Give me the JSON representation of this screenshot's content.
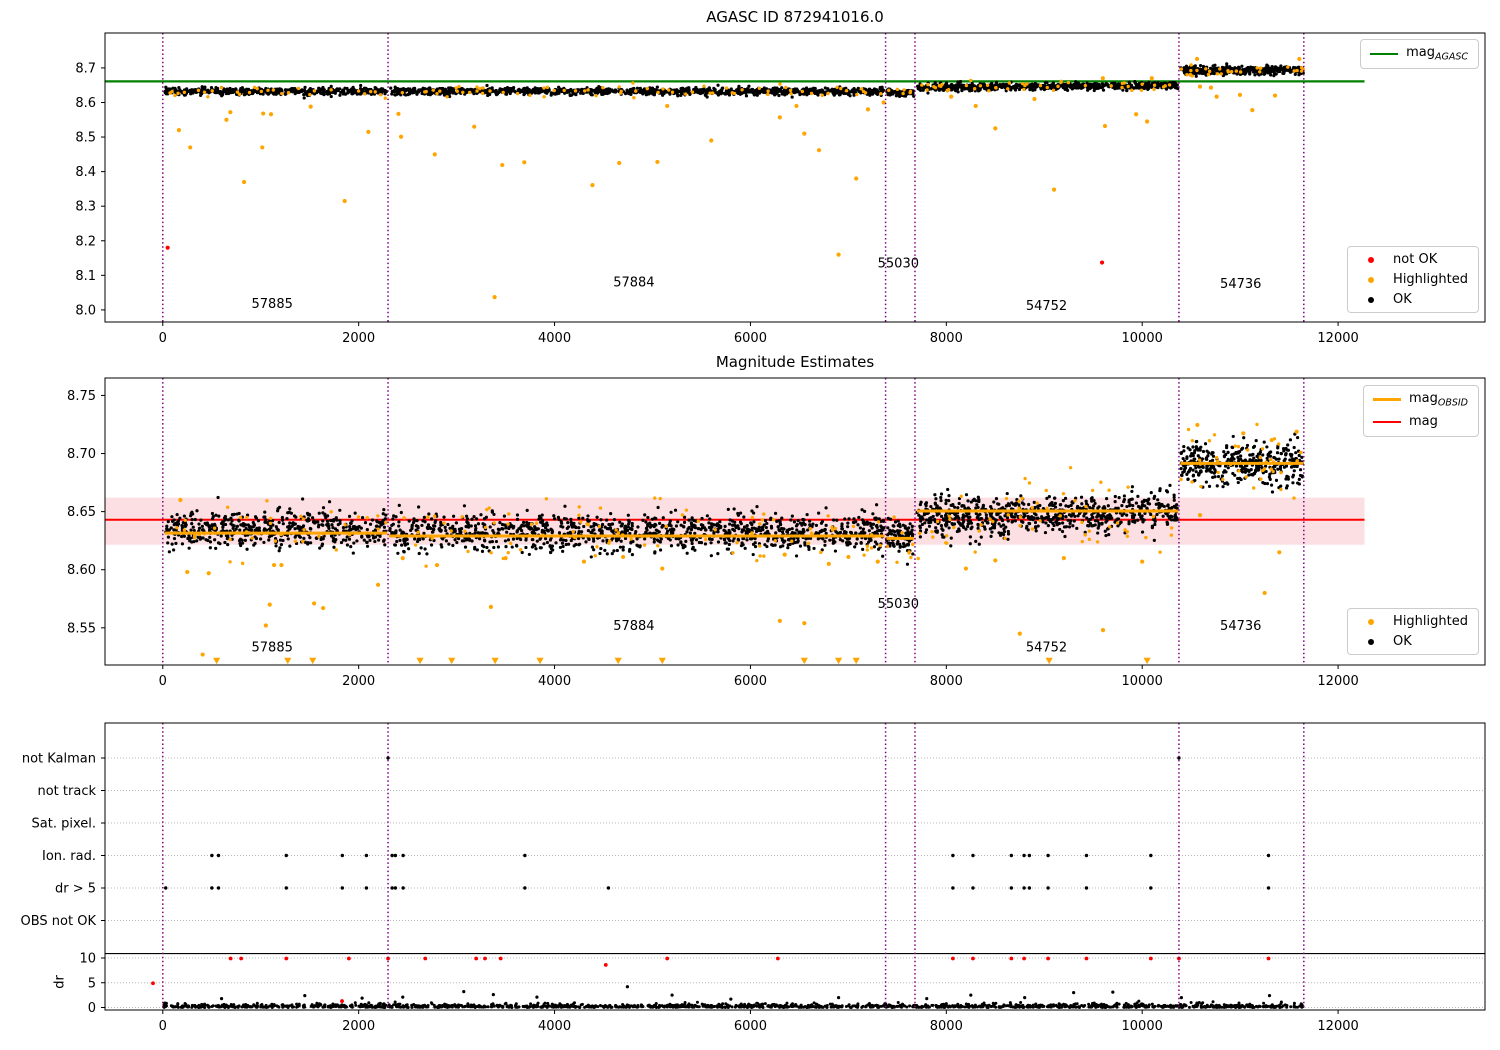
{
  "figure": {
    "background": "#ffffff"
  },
  "colors": {
    "ok": "#000000",
    "highlighted": "#FFA500",
    "not_ok": "#FF0000",
    "mag_agasc": "#008000",
    "mag_obsid": "#FFA500",
    "mag": "#FF0000",
    "vline": "#800080",
    "band_fill": "#fbdfe3",
    "grid": "#b8b8b8",
    "spine": "#000000"
  },
  "chart_data": [
    {
      "id": "plot1",
      "type": "scatter",
      "title": "AGASC ID 872941016.0",
      "xlim": [
        -590,
        13500
      ],
      "ylim": [
        7.965,
        8.801
      ],
      "xticks": {
        "values": [
          0,
          2000,
          4000,
          6000,
          8000,
          10000,
          12000
        ],
        "labels": [
          "0",
          "2000",
          "4000",
          "6000",
          "8000",
          "10000",
          "12000"
        ]
      },
      "yticks": {
        "values": [
          8.0,
          8.1,
          8.2,
          8.3,
          8.4,
          8.5,
          8.6,
          8.7
        ],
        "labels": [
          "8.0",
          "8.1",
          "8.2",
          "8.3",
          "8.4",
          "8.5",
          "8.6",
          "8.7"
        ]
      },
      "mag_agasc": 8.661,
      "ref_span": [
        -590,
        12270
      ],
      "vlines": [
        0,
        2300,
        7380,
        7680,
        10375,
        11650
      ],
      "segments": [
        {
          "x0": 20,
          "x1": 2285,
          "mean": 8.632,
          "sd": 0.005,
          "n": 520,
          "trend": 0,
          "n_hl": 30,
          "seed": 11
        },
        {
          "x0": 2315,
          "x1": 7365,
          "mean": 8.6325,
          "sd": 0.005,
          "n": 1150,
          "trend": -0.001,
          "n_hl": 70,
          "seed": 22
        },
        {
          "x0": 7390,
          "x1": 7668,
          "mean": 8.628,
          "sd": 0.0045,
          "n": 90,
          "trend": 0,
          "n_hl": 6,
          "seed": 33
        },
        {
          "x0": 7700,
          "x1": 10365,
          "mean": 8.646,
          "sd": 0.005,
          "n": 720,
          "trend": 0.006,
          "n_hl": 45,
          "seed": 44
        },
        {
          "x0": 10390,
          "x1": 11645,
          "mean": 8.6925,
          "sd": 0.006,
          "n": 390,
          "trend": 0,
          "n_hl": 28,
          "seed": 55
        }
      ],
      "highlighted_outliers": [
        [
          165,
          8.52
        ],
        [
          280,
          8.47
        ],
        [
          650,
          8.55
        ],
        [
          690,
          8.572
        ],
        [
          830,
          8.37
        ],
        [
          1016,
          8.47
        ],
        [
          1025,
          8.568
        ],
        [
          1105,
          8.566
        ],
        [
          1510,
          8.588
        ],
        [
          1857,
          8.315
        ],
        [
          2099,
          8.515
        ],
        [
          2406,
          8.567
        ],
        [
          2433,
          8.501
        ],
        [
          2777,
          8.45
        ],
        [
          3180,
          8.53
        ],
        [
          3388,
          8.037
        ],
        [
          3466,
          8.419
        ],
        [
          3691,
          8.427
        ],
        [
          4387,
          8.361
        ],
        [
          4660,
          8.425
        ],
        [
          5050,
          8.428
        ],
        [
          5150,
          8.59
        ],
        [
          5600,
          8.49
        ],
        [
          6300,
          8.557
        ],
        [
          6470,
          8.59
        ],
        [
          6550,
          8.51
        ],
        [
          6700,
          8.462
        ],
        [
          6900,
          8.16
        ],
        [
          7080,
          8.38
        ],
        [
          7200,
          8.58
        ],
        [
          7360,
          8.6
        ],
        [
          8050,
          8.617
        ],
        [
          8300,
          8.59
        ],
        [
          8500,
          8.525
        ],
        [
          8900,
          8.61
        ],
        [
          9100,
          8.348
        ],
        [
          9598,
          8.67
        ],
        [
          9620,
          8.532
        ],
        [
          9938,
          8.566
        ],
        [
          10098,
          8.67
        ],
        [
          10050,
          8.545
        ],
        [
          10560,
          8.726
        ],
        [
          10590,
          8.646
        ],
        [
          10702,
          8.643
        ],
        [
          10760,
          8.617
        ],
        [
          10998,
          8.622
        ],
        [
          11124,
          8.578
        ],
        [
          11356,
          8.62
        ],
        [
          11604,
          8.726
        ]
      ],
      "not_ok_points": [
        [
          50,
          8.18
        ],
        [
          9590,
          8.137
        ]
      ],
      "annotations": [
        {
          "label": "57885",
          "x": 1117,
          "y": 8.006
        },
        {
          "label": "57884",
          "x": 4810,
          "y": 8.067
        },
        {
          "label": "55030",
          "x": 7510,
          "y": 8.122
        },
        {
          "label": "54752",
          "x": 9023,
          "y": 8.0
        },
        {
          "label": "54736",
          "x": 11006,
          "y": 8.064
        }
      ],
      "legend_line": {
        "main": "mag",
        "sub": "AGASC",
        "color": "#008000"
      },
      "legend_points": [
        {
          "label": "not OK",
          "color": "#FF0000"
        },
        {
          "label": "Highlighted",
          "color": "#FFA500"
        },
        {
          "label": "OK",
          "color": "#000000"
        }
      ]
    },
    {
      "id": "plot2",
      "type": "scatter",
      "title": "Magnitude Estimates",
      "xlim": [
        -590,
        13500
      ],
      "ylim": [
        8.518,
        8.765
      ],
      "xticks": {
        "values": [
          0,
          2000,
          4000,
          6000,
          8000,
          10000,
          12000
        ],
        "labels": [
          "0",
          "2000",
          "4000",
          "6000",
          "8000",
          "10000",
          "12000"
        ]
      },
      "yticks": {
        "values": [
          8.55,
          8.6,
          8.65,
          8.7,
          8.75
        ],
        "labels": [
          "8.55",
          "8.60",
          "8.65",
          "8.70",
          "8.75"
        ]
      },
      "mag": 8.643,
      "mag_band": [
        8.6215,
        8.662
      ],
      "ref_span": [
        -590,
        12270
      ],
      "vlines": [
        0,
        2300,
        7380,
        7680,
        10375,
        11650
      ],
      "obsid_lines": [
        {
          "x0": 20,
          "x1": 2290,
          "y": 8.6315
        },
        {
          "x0": 2310,
          "x1": 7370,
          "y": 8.629
        },
        {
          "x0": 7390,
          "x1": 7670,
          "y": 8.627
        },
        {
          "x0": 7700,
          "x1": 10370,
          "y": 8.6505
        },
        {
          "x0": 10390,
          "x1": 11645,
          "y": 8.6915
        }
      ],
      "segments": [
        {
          "x0": 20,
          "x1": 2285,
          "mean": 8.635,
          "sd": 0.008,
          "n": 520,
          "trend": 0,
          "n_hl": 40,
          "seed": 101
        },
        {
          "x0": 2315,
          "x1": 7365,
          "mean": 8.632,
          "sd": 0.008,
          "n": 1150,
          "trend": -0.001,
          "n_hl": 90,
          "seed": 102
        },
        {
          "x0": 7390,
          "x1": 7668,
          "mean": 8.6285,
          "sd": 0.007,
          "n": 90,
          "trend": 0,
          "n_hl": 8,
          "seed": 103
        },
        {
          "x0": 7700,
          "x1": 10365,
          "mean": 8.647,
          "sd": 0.0085,
          "n": 720,
          "trend": 0.006,
          "n_hl": 60,
          "seed": 104
        },
        {
          "x0": 10390,
          "x1": 11645,
          "mean": 8.6915,
          "sd": 0.009,
          "n": 390,
          "trend": 0,
          "n_hl": 40,
          "seed": 105
        }
      ],
      "highlighted_outliers": [
        [
          180,
          8.66
        ],
        [
          250,
          8.598
        ],
        [
          407,
          8.527
        ],
        [
          469,
          8.597
        ],
        [
          1052,
          8.552
        ],
        [
          1092,
          8.57
        ],
        [
          1136,
          8.604
        ],
        [
          1211,
          8.604
        ],
        [
          1545,
          8.571
        ],
        [
          1637,
          8.567
        ],
        [
          2198,
          8.587
        ],
        [
          2450,
          8.61
        ],
        [
          2800,
          8.604
        ],
        [
          3350,
          8.568
        ],
        [
          3500,
          8.61
        ],
        [
          4300,
          8.607
        ],
        [
          4700,
          8.611
        ],
        [
          5100,
          8.601
        ],
        [
          6300,
          8.556
        ],
        [
          6350,
          8.613
        ],
        [
          6550,
          8.554
        ],
        [
          6800,
          8.605
        ],
        [
          7000,
          8.611
        ],
        [
          7300,
          8.607
        ],
        [
          8200,
          8.601
        ],
        [
          8500,
          8.608
        ],
        [
          8750,
          8.545
        ],
        [
          9200,
          8.61
        ],
        [
          9600,
          8.548
        ],
        [
          10000,
          8.607
        ],
        [
          10563,
          8.7246
        ],
        [
          11032,
          8.7174
        ],
        [
          11322,
          8.7116
        ],
        [
          11577,
          8.7188
        ],
        [
          10590,
          8.647
        ],
        [
          11250,
          8.58
        ],
        [
          11400,
          8.615
        ]
      ],
      "clip_markers_y": 8.5215,
      "clip_markers": [
        550,
        1276,
        1531,
        2627,
        2950,
        3393,
        3852,
        4650,
        5100,
        6550,
        6900,
        7080,
        9050,
        10050
      ],
      "annotations": [
        {
          "label": "57885",
          "x": 1117,
          "y": 8.5295
        },
        {
          "label": "57884",
          "x": 4810,
          "y": 8.548
        },
        {
          "label": "55030",
          "x": 7510,
          "y": 8.567
        },
        {
          "label": "54752",
          "x": 9023,
          "y": 8.5295
        },
        {
          "label": "54736",
          "x": 11006,
          "y": 8.548
        }
      ],
      "legend_lines": [
        {
          "main": "mag",
          "sub": "OBSID",
          "color": "#FFA500"
        },
        {
          "main": "mag",
          "sub": "",
          "color": "#FF0000"
        }
      ],
      "legend_points": [
        {
          "label": "Highlighted",
          "color": "#FFA500"
        },
        {
          "label": "OK",
          "color": "#000000"
        }
      ]
    },
    {
      "id": "plot3",
      "type": "flags",
      "xlim": [
        -590,
        13500
      ],
      "xticks": {
        "values": [
          0,
          2000,
          4000,
          6000,
          8000,
          10000,
          12000
        ],
        "labels": [
          "0",
          "2000",
          "4000",
          "6000",
          "8000",
          "10000",
          "12000"
        ]
      },
      "rows": [
        "not Kalman",
        "not track",
        "Sat. pixel.",
        "Ion. rad.",
        "dr > 5",
        "OBS not OK"
      ],
      "vlines": [
        0,
        2300,
        7380,
        7680,
        10375,
        11650
      ],
      "flag_dots": [
        {
          "row": 0,
          "x": [
            2300,
            10375
          ]
        },
        {
          "row": 3,
          "x": [
            501,
            569,
            1261,
            1833,
            2079,
            2342,
            2375,
            2454,
            3697,
            8067,
            8272,
            8664,
            8794,
            8848,
            9039,
            9431,
            10088,
            11290
          ]
        },
        {
          "row": 4,
          "x": [
            30,
            501,
            569,
            1261,
            1833,
            2079,
            2342,
            2375,
            2454,
            3697,
            4550,
            8067,
            8272,
            8664,
            8794,
            8848,
            9039,
            9431,
            10088,
            11290
          ]
        }
      ],
      "dr_axis": {
        "label": "dr",
        "ticks": [
          10,
          5,
          0
        ],
        "tick_labels": [
          "10",
          "5",
          "0"
        ],
        "hline_dr": 10.9
      },
      "red_dr_points": [
        [
          -100,
          4.9
        ],
        [
          693,
          9.9
        ],
        [
          800,
          9.9
        ],
        [
          1261,
          9.9
        ],
        [
          1830,
          1.3
        ],
        [
          1900,
          9.9
        ],
        [
          2300,
          9.9
        ],
        [
          2680,
          9.9
        ],
        [
          3200,
          9.9
        ],
        [
          3290,
          9.9
        ],
        [
          3450,
          9.9
        ],
        [
          4523,
          8.6
        ],
        [
          5150,
          9.9
        ],
        [
          6280,
          9.9
        ],
        [
          8067,
          9.9
        ],
        [
          8272,
          9.9
        ],
        [
          8664,
          9.9
        ],
        [
          8794,
          9.9
        ],
        [
          9039,
          9.9
        ],
        [
          9431,
          9.9
        ],
        [
          10088,
          9.9
        ],
        [
          10375,
          9.9
        ],
        [
          11290,
          9.9
        ]
      ],
      "black_dr_points": [
        [
          600,
          1.8
        ],
        [
          1450,
          2.4
        ],
        [
          2035,
          1.9
        ],
        [
          2450,
          2.1
        ],
        [
          3073,
          3.2
        ],
        [
          3375,
          2.6
        ],
        [
          3820,
          2.1
        ],
        [
          4744,
          4.2
        ],
        [
          5200,
          2.5
        ],
        [
          5800,
          1.7
        ],
        [
          6900,
          2.0
        ],
        [
          7800,
          1.8
        ],
        [
          8250,
          2.5
        ],
        [
          8800,
          2.0
        ],
        [
          9300,
          3.0
        ],
        [
          9700,
          3.1
        ],
        [
          10400,
          2.0
        ],
        [
          11300,
          2.4
        ]
      ],
      "dr_band": {
        "x0": 0,
        "x1": 11645,
        "n": 1500,
        "scale": 0.35,
        "max": 1.3,
        "seed": 77
      }
    }
  ]
}
